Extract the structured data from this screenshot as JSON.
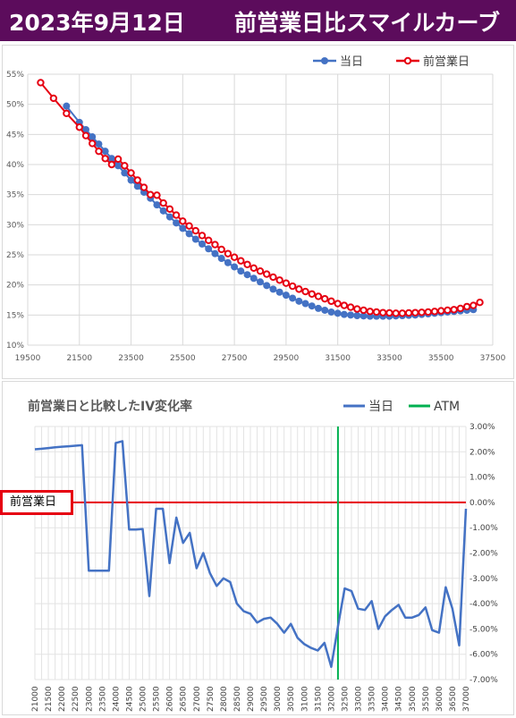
{
  "header": {
    "date": "2023年9月12日",
    "title": "前営業日比スマイルカーブ",
    "background": "#5c0c5c"
  },
  "colors": {
    "today": "#4472c4",
    "previous": "#e60012",
    "atm": "#00b050",
    "iv_change": "#4472c4",
    "zero_line": "#e60012"
  },
  "chart_data": [
    {
      "type": "scatter",
      "title": "",
      "xlabel": "",
      "ylabel": "",
      "xlim": [
        19500,
        37500
      ],
      "ylim": [
        10,
        55
      ],
      "legend_position": "top-right",
      "grid": true,
      "x_ticks": [
        "19500",
        "21500",
        "23500",
        "25500",
        "27500",
        "29500",
        "31500",
        "33500",
        "35500",
        "37500"
      ],
      "y_ticks": [
        "10%",
        "15%",
        "20%",
        "25%",
        "30%",
        "35%",
        "40%",
        "45%",
        "50%",
        "55%"
      ],
      "series": [
        {
          "name": "当日",
          "color": "#4472c4",
          "x": [
            21000,
            21500,
            21750,
            22000,
            22250,
            22500,
            22750,
            23000,
            23250,
            23500,
            23750,
            24000,
            24250,
            24500,
            24750,
            25000,
            25250,
            25500,
            25750,
            26000,
            26250,
            26500,
            26750,
            27000,
            27250,
            27500,
            27750,
            28000,
            28250,
            28500,
            28750,
            29000,
            29250,
            29500,
            29750,
            30000,
            30250,
            30500,
            30750,
            31000,
            31250,
            31500,
            31750,
            32000,
            32250,
            32500,
            32750,
            33000,
            33250,
            33500,
            33750,
            34000,
            34250,
            34500,
            34750,
            35000,
            35250,
            35500,
            35750,
            36000,
            36250,
            36500,
            36750
          ],
          "y": [
            49.7,
            47.0,
            45.8,
            44.6,
            43.4,
            42.2,
            41.0,
            39.8,
            38.6,
            37.4,
            36.4,
            35.4,
            34.4,
            33.3,
            32.3,
            31.3,
            30.3,
            29.4,
            28.5,
            27.6,
            26.8,
            26.0,
            25.2,
            24.4,
            23.7,
            23.0,
            22.3,
            21.7,
            21.1,
            20.5,
            19.9,
            19.3,
            18.8,
            18.3,
            17.8,
            17.3,
            16.9,
            16.5,
            16.1,
            15.8,
            15.5,
            15.3,
            15.1,
            15.0,
            14.9,
            14.85,
            14.8,
            14.8,
            14.8,
            14.8,
            14.85,
            14.9,
            14.95,
            15.0,
            15.1,
            15.2,
            15.3,
            15.4,
            15.5,
            15.6,
            15.7,
            15.8,
            15.9
          ]
        },
        {
          "name": "前営業日",
          "color": "#e60012",
          "x": [
            20000,
            20500,
            21000,
            21500,
            21750,
            22000,
            22250,
            22500,
            22750,
            23000,
            23250,
            23500,
            23750,
            24000,
            24250,
            24500,
            24750,
            25000,
            25250,
            25500,
            25750,
            26000,
            26250,
            26500,
            26750,
            27000,
            27250,
            27500,
            27750,
            28000,
            28250,
            28500,
            28750,
            29000,
            29250,
            29500,
            29750,
            30000,
            30250,
            30500,
            30750,
            31000,
            31250,
            31500,
            31750,
            32000,
            32250,
            32500,
            32750,
            33000,
            33250,
            33500,
            33750,
            34000,
            34250,
            34500,
            34750,
            35000,
            35250,
            35500,
            35750,
            36000,
            36250,
            36500,
            36750,
            37000
          ],
          "y": [
            53.6,
            51.0,
            48.5,
            46.2,
            44.8,
            43.5,
            42.2,
            41.0,
            40.0,
            40.9,
            39.8,
            38.6,
            37.4,
            36.2,
            35.0,
            34.9,
            33.6,
            32.6,
            31.6,
            30.6,
            29.8,
            29.0,
            28.2,
            27.4,
            26.7,
            25.9,
            25.2,
            24.6,
            24.0,
            23.4,
            22.8,
            22.3,
            21.8,
            21.3,
            20.8,
            20.3,
            19.8,
            19.3,
            18.9,
            18.5,
            18.1,
            17.7,
            17.3,
            16.9,
            16.6,
            16.3,
            16.0,
            15.8,
            15.6,
            15.5,
            15.4,
            15.35,
            15.3,
            15.3,
            15.35,
            15.4,
            15.45,
            15.5,
            15.6,
            15.7,
            15.8,
            15.9,
            16.1,
            16.4,
            16.6,
            17.1
          ]
        }
      ]
    },
    {
      "type": "line",
      "title": "前営業日と比較したIV変化率",
      "xlabel": "",
      "ylabel": "",
      "ylim": [
        -7,
        3
      ],
      "legend_position": "top-right",
      "grid": true,
      "y_ticks": [
        "3.00%",
        "2.00%",
        "1.00%",
        "0.00%",
        "-1.00%",
        "-2.00%",
        "-3.00%",
        "-4.00%",
        "-5.00%",
        "-6.00%",
        "-7.00%"
      ],
      "x_ticks": [
        "21000",
        "21500",
        "22000",
        "22500",
        "23000",
        "23500",
        "24000",
        "24500",
        "25000",
        "25500",
        "26000",
        "26500",
        "27000",
        "27500",
        "28000",
        "28500",
        "29000",
        "29500",
        "30000",
        "30500",
        "31000",
        "31500",
        "32000",
        "32500",
        "33000",
        "33500",
        "34000",
        "34500",
        "35000",
        "35500",
        "36000",
        "36500",
        "37000"
      ],
      "categories": [
        21000,
        21250,
        21500,
        21750,
        22000,
        22250,
        22500,
        22750,
        23000,
        23250,
        23500,
        23750,
        24000,
        24250,
        24500,
        24750,
        25000,
        25250,
        25500,
        25750,
        26000,
        26250,
        26500,
        26750,
        27000,
        27250,
        27500,
        27750,
        28000,
        28250,
        28500,
        28750,
        29000,
        29250,
        29500,
        29750,
        30000,
        30250,
        30500,
        30750,
        31000,
        31250,
        31500,
        31750,
        32000,
        32250,
        32500,
        32750,
        33000,
        33250,
        33500,
        33750,
        34000,
        34250,
        34500,
        34750,
        35000,
        35250,
        35500,
        35750,
        36000,
        36250,
        36500,
        36750,
        37000
      ],
      "series": [
        {
          "name": "当日",
          "color": "#4472c4",
          "values": [
            2.1,
            2.12,
            2.15,
            2.18,
            2.2,
            2.22,
            2.24,
            2.26,
            -2.7,
            -2.7,
            -2.7,
            -2.7,
            2.35,
            2.42,
            -1.07,
            -1.07,
            -1.05,
            -3.7,
            -0.25,
            -0.25,
            -2.4,
            -0.6,
            -1.6,
            -1.2,
            -2.6,
            -2.0,
            -2.8,
            -3.3,
            -3.0,
            -3.15,
            -4.0,
            -4.3,
            -4.4,
            -4.75,
            -4.6,
            -4.55,
            -4.8,
            -5.15,
            -4.8,
            -5.35,
            -5.6,
            -5.75,
            -5.85,
            -5.55,
            -6.5,
            -4.9,
            -3.4,
            -3.5,
            -4.2,
            -4.25,
            -3.9,
            -5.0,
            -4.5,
            -4.25,
            -4.05,
            -4.55,
            -4.55,
            -4.45,
            -4.15,
            -5.05,
            -5.15,
            -3.35,
            -4.2,
            -5.65,
            -0.25
          ]
        }
      ],
      "markers": [
        {
          "name": "ATM",
          "x": 32250,
          "color": "#00b050"
        }
      ],
      "reference_line": {
        "label": "前営業日",
        "value": 0
      }
    }
  ]
}
